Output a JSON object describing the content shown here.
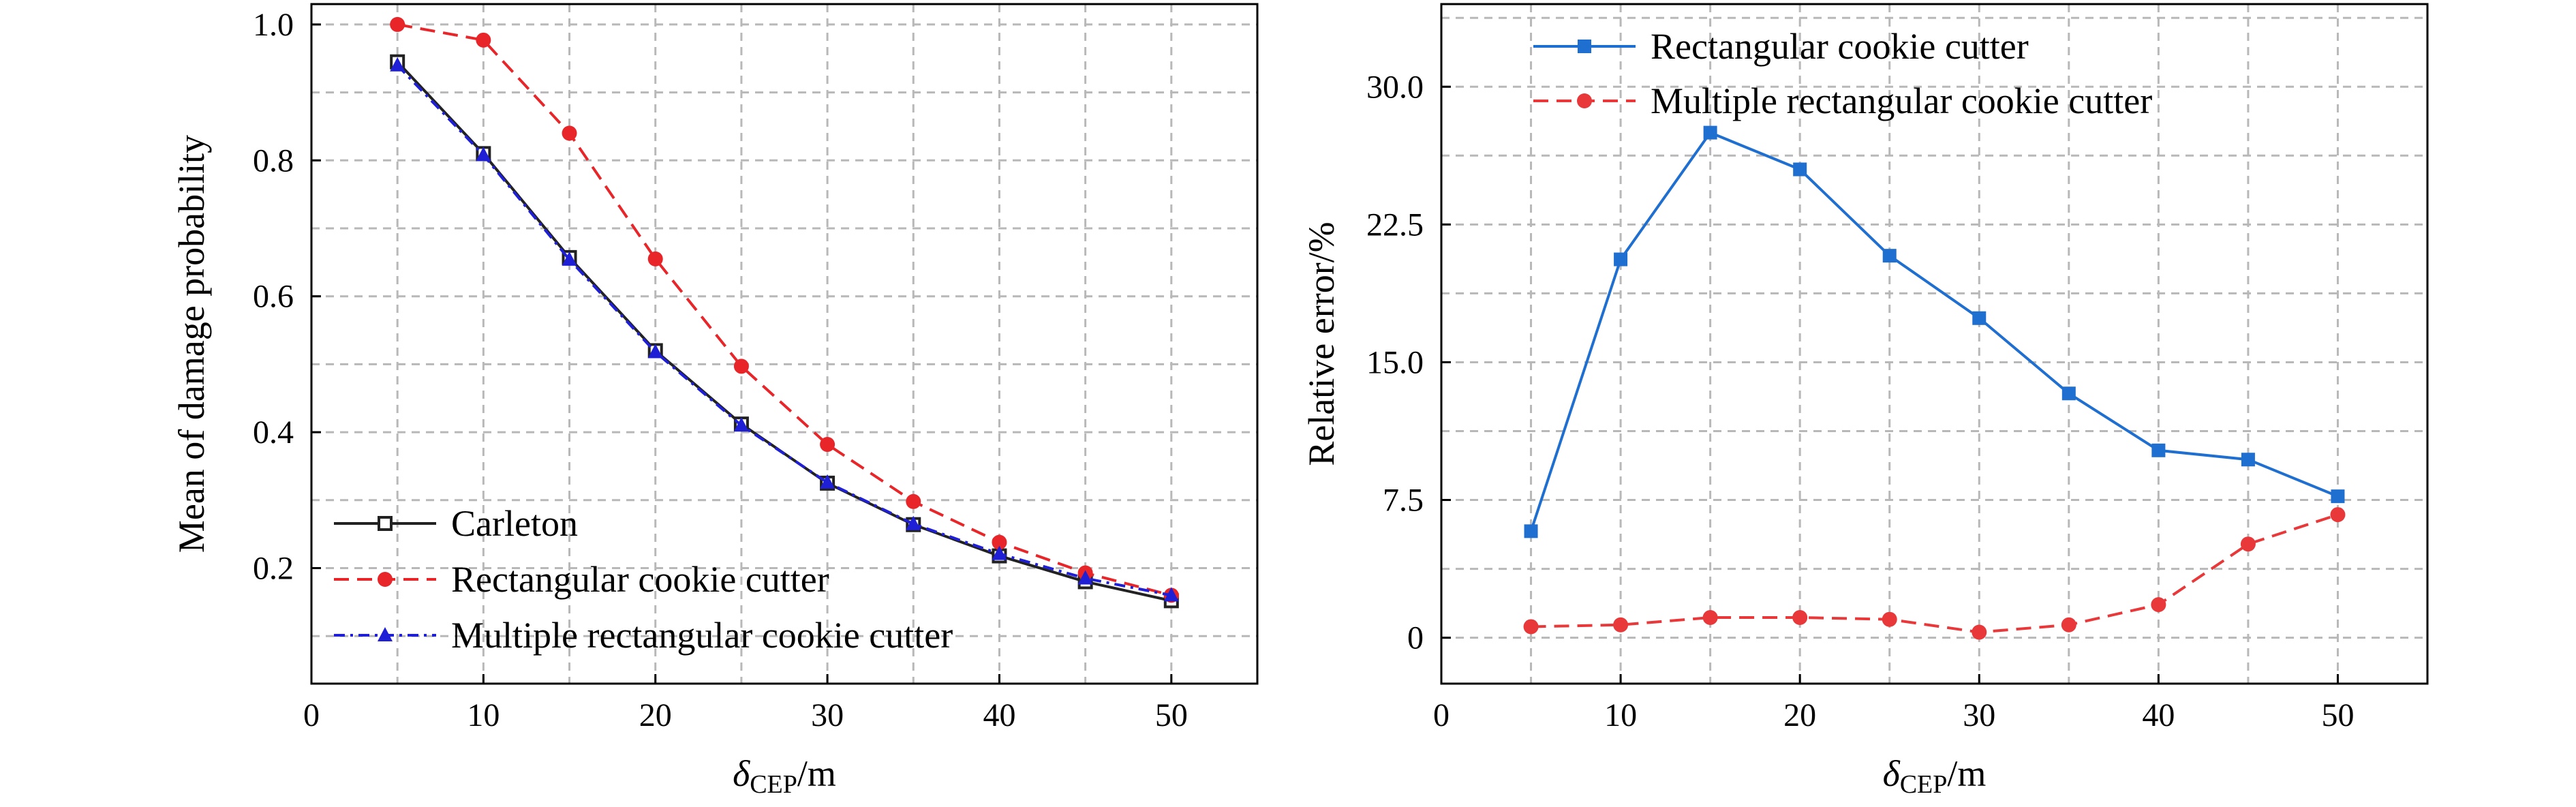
{
  "chart_data": [
    {
      "type": "line",
      "xlabel_main": "δ",
      "xlabel_sub": "CEP",
      "xlabel_unit": "/m",
      "ylabel": "Mean of damage probability",
      "xlim": [
        0,
        55
      ],
      "ylim": [
        0.03,
        1.03
      ],
      "xticks": [
        0,
        10,
        20,
        30,
        40,
        50
      ],
      "yticks": [
        0.2,
        0.4,
        0.6,
        0.8,
        1.0
      ],
      "ytick_labels": [
        "0.2",
        "0.4",
        "0.6",
        "0.8",
        "1.0"
      ],
      "grid": true,
      "legend_position": "bottom-left",
      "series": [
        {
          "name": "Carleton",
          "color": "#222222",
          "marker": "open-square",
          "dash": "solid",
          "x": [
            5,
            10,
            15,
            20,
            25,
            30,
            35,
            40,
            45,
            50
          ],
          "y": [
            0.945,
            0.81,
            0.657,
            0.52,
            0.412,
            0.325,
            0.264,
            0.218,
            0.18,
            0.152
          ]
        },
        {
          "name": "Rectangular cookie cutter",
          "color": "#e8262a",
          "marker": "circle",
          "dash": "dash",
          "x": [
            5,
            10,
            15,
            20,
            25,
            30,
            35,
            40,
            45,
            50
          ],
          "y": [
            1.0,
            0.977,
            0.84,
            0.655,
            0.497,
            0.382,
            0.298,
            0.238,
            0.193,
            0.16
          ]
        },
        {
          "name": "Multiple rectangular cookie cutter",
          "color": "#1f1fd6",
          "marker": "triangle",
          "dash": "dashdot",
          "x": [
            5,
            10,
            15,
            20,
            25,
            30,
            35,
            40,
            45,
            50
          ],
          "y": [
            0.94,
            0.808,
            0.654,
            0.518,
            0.41,
            0.326,
            0.265,
            0.221,
            0.185,
            0.16
          ]
        }
      ]
    },
    {
      "type": "line",
      "xlabel_main": "δ",
      "xlabel_sub": "CEP",
      "xlabel_unit": "/m",
      "ylabel": "Relative error/%",
      "xlim": [
        0,
        55
      ],
      "ylim": [
        -2.5,
        34.5
      ],
      "xticks": [
        0,
        10,
        20,
        30,
        40,
        50
      ],
      "yticks": [
        0,
        7.5,
        15,
        22.5,
        30
      ],
      "ytick_labels": [
        "0",
        "7.5",
        "15.0",
        "22.5",
        "30.0"
      ],
      "grid": true,
      "legend_position": "top-left",
      "series": [
        {
          "name": "Rectangular cookie cutter",
          "color": "#1f6fd0",
          "marker": "square",
          "dash": "solid",
          "x": [
            5,
            10,
            15,
            20,
            25,
            30,
            35,
            40,
            45,
            50
          ],
          "y": [
            5.8,
            20.6,
            27.5,
            25.5,
            20.8,
            17.4,
            13.3,
            10.2,
            9.7,
            7.7
          ]
        },
        {
          "name": "Multiple rectangular cookie cutter",
          "color": "#e8383a",
          "marker": "circle",
          "dash": "dash",
          "x": [
            5,
            10,
            15,
            20,
            25,
            30,
            35,
            40,
            45,
            50
          ],
          "y": [
            0.6,
            0.7,
            1.1,
            1.1,
            1.0,
            0.3,
            0.7,
            1.8,
            5.1,
            6.7
          ]
        }
      ]
    }
  ]
}
